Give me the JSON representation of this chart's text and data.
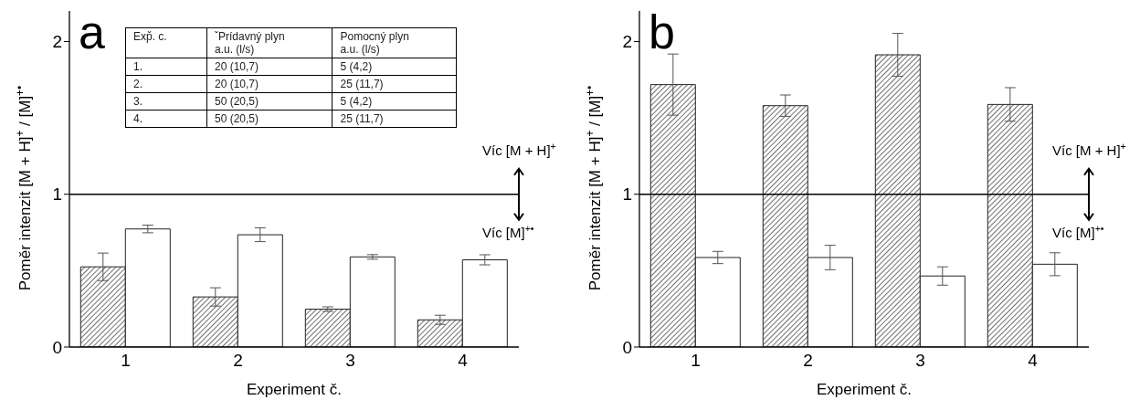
{
  "chart_data": [
    {
      "type": "bar",
      "title": "a",
      "xlabel": "Experiment č.",
      "ylabel": "Poměr intenzit [M + H]$^{+}$ / [M]$^{+•}$",
      "categories": [
        "1",
        "2",
        "3",
        "4"
      ],
      "series": [
        {
          "color": "#222222",
          "values": [
            0.525,
            0.328,
            0.248,
            0.178
          ],
          "errors": [
            0.09,
            0.06,
            0.015,
            0.03
          ]
        },
        {
          "color": "#ffffff",
          "values": [
            0.773,
            0.735,
            0.59,
            0.571
          ],
          "errors": [
            0.025,
            0.045,
            0.015,
            0.033
          ]
        }
      ],
      "ylim": [
        0,
        2.2
      ],
      "yticks": [
        0,
        1,
        2
      ],
      "ref_lines": [
        {
          "axis": "y",
          "value": 1
        }
      ],
      "annotations": [
        "Víc [M + H]$^{+}$",
        "Víc [M]$^{+•}$",
        "Exp̌. c.",
        "ˇPrídavný plyn\na.u. (l/s)",
        "Pomocný plyn\na.u. (l/s)",
        "1.",
        "20 (10,7)",
        "5 (4,2)",
        "2.",
        "20 (10,7)",
        "25 (11,7)",
        "3.",
        "50 (20,5)",
        "5 (4,2)",
        "4.",
        "50 (20,5)",
        "25 (11,7)"
      ]
    },
    {
      "type": "bar",
      "title": "b",
      "xlabel": "Experiment č.",
      "ylabel": "Poměr intenzit [M + H]$^{+}$ / [M]$^{+•}$",
      "categories": [
        "1",
        "2",
        "3",
        "4"
      ],
      "series": [
        {
          "color": "#222222",
          "values": [
            1.718,
            1.58,
            1.913,
            1.588
          ],
          "errors": [
            0.2,
            0.07,
            0.14,
            0.11
          ]
        },
        {
          "color": "#ffffff",
          "values": [
            0.586,
            0.586,
            0.465,
            0.542
          ],
          "errors": [
            0.04,
            0.08,
            0.06,
            0.075
          ]
        }
      ],
      "ylim": [
        0,
        2.2
      ],
      "yticks": [
        0,
        1,
        2
      ],
      "ref_lines": [
        {
          "axis": "y",
          "value": 1
        }
      ],
      "annotations": [
        "Víc [M + H]$^{+}$",
        "Víc [M]$^{+•}$"
      ]
    }
  ]
}
